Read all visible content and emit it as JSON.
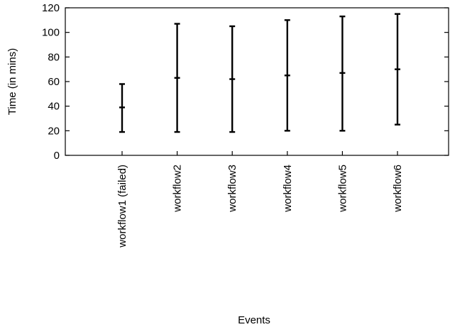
{
  "chart_data": {
    "type": "errorbar",
    "title": "",
    "xlabel": "Events",
    "ylabel": "Time (in mins)",
    "ylim": [
      0,
      120
    ],
    "yticks": [
      0,
      20,
      40,
      60,
      80,
      100,
      120
    ],
    "grid": false,
    "categories": [
      "workflow1 (failed)",
      "workflow2",
      "workflow3",
      "workflow4",
      "workflow5",
      "workflow6"
    ],
    "series": [
      {
        "center": [
          39,
          63,
          62,
          65,
          67,
          70
        ],
        "low": [
          19,
          19,
          19,
          20,
          20,
          25
        ],
        "high": [
          58,
          107,
          105,
          110,
          113,
          115
        ]
      }
    ],
    "colors": {
      "axis": "#000000",
      "marks": "#000000",
      "background": "#ffffff"
    }
  }
}
